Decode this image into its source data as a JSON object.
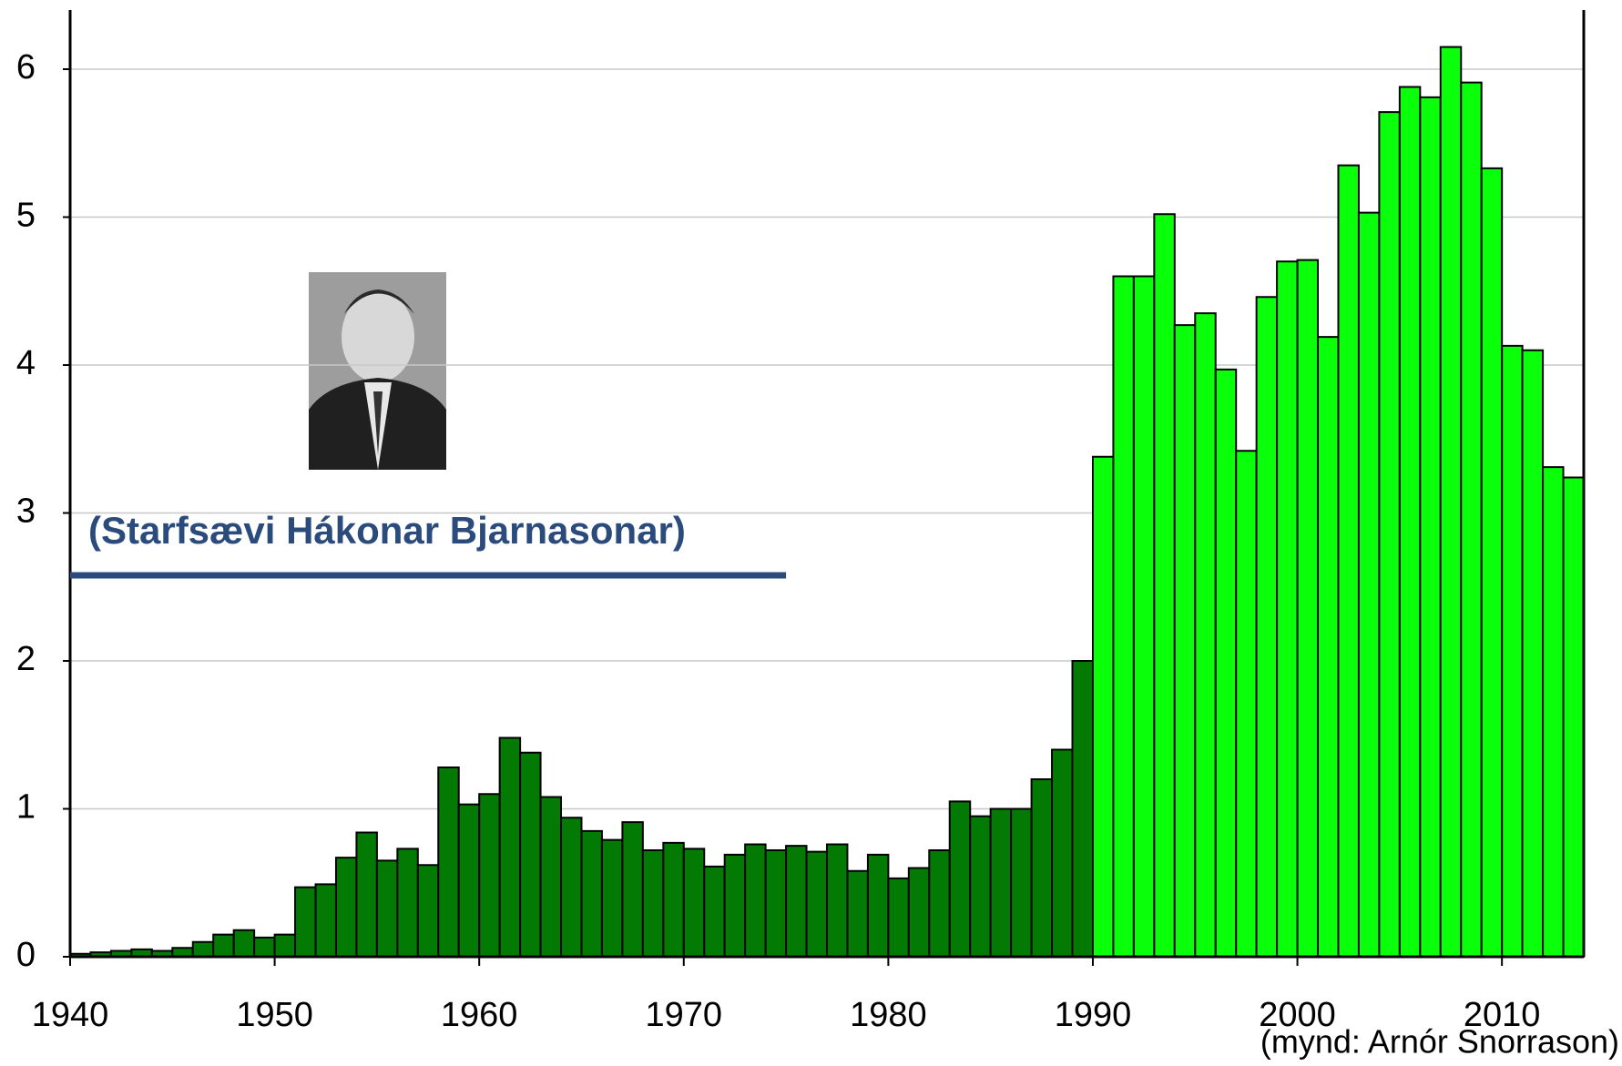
{
  "chart_data": {
    "type": "bar",
    "xlim": [
      1940,
      2014
    ],
    "xticks": [
      1940,
      1950,
      1960,
      1970,
      1980,
      1990,
      2000,
      2010
    ],
    "ylim": [
      0,
      6.4
    ],
    "yticks": [
      0,
      1,
      2,
      3,
      4,
      5,
      6
    ],
    "grid": true,
    "series": [
      {
        "color": "#037a03",
        "x": [
          1940,
          1941,
          1942,
          1943,
          1944,
          1945,
          1946,
          1947,
          1948,
          1949,
          1950,
          1951,
          1952,
          1953,
          1954,
          1955,
          1956,
          1957,
          1958,
          1959,
          1960,
          1961,
          1962,
          1963,
          1964,
          1965,
          1966,
          1967,
          1968,
          1969,
          1970,
          1971,
          1972,
          1973,
          1974,
          1975,
          1976,
          1977,
          1978,
          1979,
          1980,
          1981,
          1982,
          1983,
          1984,
          1985,
          1986,
          1987,
          1988,
          1989
        ],
        "values": [
          0.02,
          0.03,
          0.04,
          0.05,
          0.04,
          0.06,
          0.1,
          0.15,
          0.18,
          0.13,
          0.15,
          0.47,
          0.49,
          0.67,
          0.84,
          0.65,
          0.73,
          0.62,
          1.28,
          1.03,
          1.1,
          1.48,
          1.38,
          1.08,
          0.94,
          0.85,
          0.79,
          0.91,
          0.72,
          0.77,
          0.73,
          0.61,
          0.69,
          0.76,
          0.72,
          0.75,
          0.71,
          0.76,
          0.58,
          0.69,
          0.53,
          0.6,
          0.72,
          1.05,
          0.95,
          1.0,
          1.0,
          1.2,
          1.4,
          2.0
        ]
      },
      {
        "color": "#0aff0a",
        "x": [
          1990,
          1991,
          1992,
          1993,
          1994,
          1995,
          1996,
          1997,
          1998,
          1999,
          2000,
          2001,
          2002,
          2003,
          2004,
          2005,
          2006,
          2007,
          2008,
          2009,
          2010,
          2011,
          2012,
          2013
        ],
        "values": [
          3.38,
          4.6,
          4.6,
          5.02,
          4.27,
          4.35,
          3.97,
          3.42,
          4.46,
          4.7,
          4.71,
          4.19,
          5.35,
          5.03,
          5.71,
          5.88,
          5.81,
          6.15,
          5.91,
          5.33,
          4.13,
          4.1,
          3.31,
          3.24
        ]
      }
    ],
    "annotation": {
      "text": "(Starfsævi Hákonar Bjarnasonar)",
      "span": [
        1940,
        1975
      ],
      "color": "#2a4b7c"
    },
    "credit": "(mynd: Arnór Snorrason)"
  }
}
